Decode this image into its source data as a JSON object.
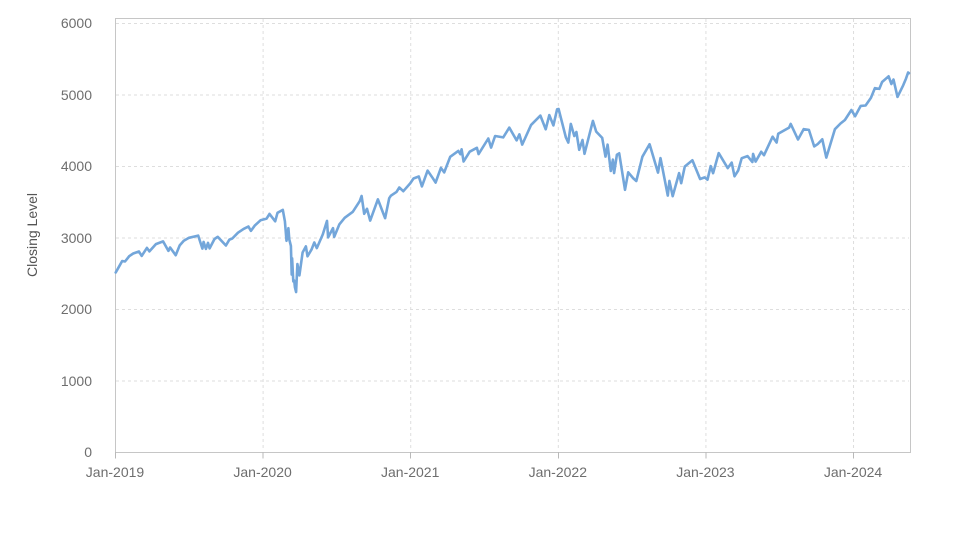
{
  "colors": {
    "background": "#ffffff",
    "line": "#73A6DA",
    "plot_border": "#c6c6c6",
    "gridline": "#dedede",
    "tick": "#b9b9b9",
    "tick_label": "#6e6e6e",
    "axis_title": "#555555"
  },
  "chart_data": {
    "type": "line",
    "title": "",
    "xlabel": "",
    "ylabel": "Closing Level",
    "grid": "dashed",
    "legend_position": "none",
    "xlim": [
      2019.0,
      2024.386
    ],
    "ylim": [
      0,
      6000
    ],
    "y_ticks": [
      {
        "label": "0",
        "value": 0
      },
      {
        "label": "1000",
        "value": 1000
      },
      {
        "label": "2000",
        "value": 2000
      },
      {
        "label": "3000",
        "value": 3000
      },
      {
        "label": "4000",
        "value": 4000
      },
      {
        "label": "5000",
        "value": 5000
      },
      {
        "label": "6000",
        "value": 6000
      }
    ],
    "x_ticks": [
      {
        "label": "Jan-2019",
        "t": 2019.0
      },
      {
        "label": "Jan-2020",
        "t": 2020.0
      },
      {
        "label": "Jan-2021",
        "t": 2021.0
      },
      {
        "label": "Jan-2022",
        "t": 2022.0
      },
      {
        "label": "Jan-2023",
        "t": 2023.0
      },
      {
        "label": "Jan-2024",
        "t": 2024.0
      }
    ],
    "series": [
      {
        "name": "Closing Level",
        "points": [
          [
            2019.005,
            2510
          ],
          [
            2019.025,
            2585
          ],
          [
            2019.049,
            2671
          ],
          [
            2019.068,
            2665
          ],
          [
            2019.096,
            2738
          ],
          [
            2019.123,
            2776
          ],
          [
            2019.162,
            2804
          ],
          [
            2019.181,
            2743
          ],
          [
            2019.216,
            2855
          ],
          [
            2019.233,
            2806
          ],
          [
            2019.277,
            2908
          ],
          [
            2019.326,
            2946
          ],
          [
            2019.362,
            2812
          ],
          [
            2019.373,
            2860
          ],
          [
            2019.411,
            2752
          ],
          [
            2019.438,
            2890
          ],
          [
            2019.466,
            2954
          ],
          [
            2019.501,
            2996
          ],
          [
            2019.564,
            3026
          ],
          [
            2019.592,
            2845
          ],
          [
            2019.6,
            2938
          ],
          [
            2019.616,
            2841
          ],
          [
            2019.63,
            2924
          ],
          [
            2019.641,
            2847
          ],
          [
            2019.674,
            2979
          ],
          [
            2019.696,
            3010
          ],
          [
            2019.751,
            2888
          ],
          [
            2019.775,
            2970
          ],
          [
            2019.795,
            2986
          ],
          [
            2019.833,
            3067
          ],
          [
            2019.871,
            3120
          ],
          [
            2019.904,
            3154
          ],
          [
            2019.921,
            3093
          ],
          [
            2019.948,
            3169
          ],
          [
            2019.986,
            3240
          ],
          [
            2020.027,
            3265
          ],
          [
            2020.047,
            3330
          ],
          [
            2020.085,
            3226
          ],
          [
            2020.101,
            3346
          ],
          [
            2020.137,
            3386
          ],
          [
            2020.151,
            3226
          ],
          [
            2020.162,
            2954
          ],
          [
            2020.175,
            3130
          ],
          [
            2020.181,
            2972
          ],
          [
            2020.192,
            2882
          ],
          [
            2020.197,
            2481
          ],
          [
            2020.2,
            2711
          ],
          [
            2020.208,
            2386
          ],
          [
            2020.214,
            2398
          ],
          [
            2020.219,
            2305
          ],
          [
            2020.227,
            2237
          ],
          [
            2020.236,
            2630
          ],
          [
            2020.249,
            2470
          ],
          [
            2020.271,
            2790
          ],
          [
            2020.293,
            2875
          ],
          [
            2020.304,
            2737
          ],
          [
            2020.331,
            2831
          ],
          [
            2020.35,
            2930
          ],
          [
            2020.367,
            2852
          ],
          [
            2020.408,
            3044
          ],
          [
            2020.436,
            3232
          ],
          [
            2020.444,
            3002
          ],
          [
            2020.477,
            3131
          ],
          [
            2020.485,
            3009
          ],
          [
            2020.52,
            3185
          ],
          [
            2020.556,
            3276
          ],
          [
            2020.611,
            3360
          ],
          [
            2020.658,
            3508
          ],
          [
            2020.671,
            3581
          ],
          [
            2020.688,
            3332
          ],
          [
            2020.707,
            3401
          ],
          [
            2020.729,
            3237
          ],
          [
            2020.781,
            3534
          ],
          [
            2020.83,
            3270
          ],
          [
            2020.858,
            3550
          ],
          [
            2020.869,
            3585
          ],
          [
            2020.907,
            3638
          ],
          [
            2020.926,
            3699
          ],
          [
            2020.953,
            3647
          ],
          [
            2021.0,
            3756
          ],
          [
            2021.022,
            3825
          ],
          [
            2021.058,
            3853
          ],
          [
            2021.079,
            3714
          ],
          [
            2021.118,
            3935
          ],
          [
            2021.153,
            3829
          ],
          [
            2021.172,
            3768
          ],
          [
            2021.208,
            3974
          ],
          [
            2021.23,
            3910
          ],
          [
            2021.271,
            4129
          ],
          [
            2021.326,
            4211
          ],
          [
            2021.34,
            4165
          ],
          [
            2021.348,
            4233
          ],
          [
            2021.362,
            4063
          ],
          [
            2021.403,
            4200
          ],
          [
            2021.452,
            4255
          ],
          [
            2021.463,
            4166
          ],
          [
            2021.529,
            4385
          ],
          [
            2021.548,
            4258
          ],
          [
            2021.575,
            4419
          ],
          [
            2021.63,
            4400
          ],
          [
            2021.671,
            4537
          ],
          [
            2021.721,
            4358
          ],
          [
            2021.74,
            4443
          ],
          [
            2021.759,
            4300
          ],
          [
            2021.819,
            4575
          ],
          [
            2021.882,
            4705
          ],
          [
            2021.918,
            4513
          ],
          [
            2021.942,
            4712
          ],
          [
            2021.97,
            4568
          ],
          [
            2021.995,
            4793
          ],
          [
            2022.005,
            4797
          ],
          [
            2022.055,
            4398
          ],
          [
            2022.071,
            4327
          ],
          [
            2022.088,
            4589
          ],
          [
            2022.112,
            4419
          ],
          [
            2022.126,
            4475
          ],
          [
            2022.145,
            4226
          ],
          [
            2022.167,
            4363
          ],
          [
            2022.181,
            4171
          ],
          [
            2022.238,
            4631
          ],
          [
            2022.26,
            4481
          ],
          [
            2022.301,
            4393
          ],
          [
            2022.323,
            4132
          ],
          [
            2022.337,
            4300
          ],
          [
            2022.359,
            3930
          ],
          [
            2022.373,
            4089
          ],
          [
            2022.381,
            3901
          ],
          [
            2022.4,
            4158
          ],
          [
            2022.416,
            4177
          ],
          [
            2022.455,
            3667
          ],
          [
            2022.477,
            3912
          ],
          [
            2022.51,
            3831
          ],
          [
            2022.532,
            3790
          ],
          [
            2022.573,
            4130
          ],
          [
            2022.622,
            4305
          ],
          [
            2022.679,
            3908
          ],
          [
            2022.696,
            4110
          ],
          [
            2022.745,
            3586
          ],
          [
            2022.756,
            3791
          ],
          [
            2022.778,
            3577
          ],
          [
            2022.822,
            3901
          ],
          [
            2022.836,
            3760
          ],
          [
            2022.86,
            3993
          ],
          [
            2022.912,
            4080
          ],
          [
            2022.964,
            3818
          ],
          [
            2022.995,
            3840
          ],
          [
            2023.014,
            3808
          ],
          [
            2023.036,
            3999
          ],
          [
            2023.052,
            3899
          ],
          [
            2023.09,
            4180
          ],
          [
            2023.151,
            3970
          ],
          [
            2023.178,
            4048
          ],
          [
            2023.197,
            3856
          ],
          [
            2023.222,
            3937
          ],
          [
            2023.246,
            4109
          ],
          [
            2023.285,
            4138
          ],
          [
            2023.318,
            4056
          ],
          [
            2023.323,
            4169
          ],
          [
            2023.34,
            4061
          ],
          [
            2023.378,
            4198
          ],
          [
            2023.397,
            4151
          ],
          [
            2023.455,
            4410
          ],
          [
            2023.482,
            4329
          ],
          [
            2023.493,
            4450
          ],
          [
            2023.567,
            4537
          ],
          [
            2023.578,
            4589
          ],
          [
            2023.627,
            4370
          ],
          [
            2023.666,
            4516
          ],
          [
            2023.701,
            4505
          ],
          [
            2023.737,
            4274
          ],
          [
            2023.762,
            4309
          ],
          [
            2023.792,
            4373
          ],
          [
            2023.819,
            4117
          ],
          [
            2023.877,
            4514
          ],
          [
            2023.915,
            4595
          ],
          [
            2023.945,
            4644
          ],
          [
            2023.989,
            4783
          ],
          [
            2024.014,
            4697
          ],
          [
            2024.052,
            4840
          ],
          [
            2024.085,
            4846
          ],
          [
            2024.121,
            4953
          ],
          [
            2024.148,
            5089
          ],
          [
            2024.178,
            5078
          ],
          [
            2024.197,
            5175
          ],
          [
            2024.241,
            5254
          ],
          [
            2024.26,
            5147
          ],
          [
            2024.274,
            5210
          ],
          [
            2024.301,
            4967
          ],
          [
            2024.34,
            5128
          ],
          [
            2024.359,
            5223
          ],
          [
            2024.373,
            5308
          ],
          [
            2024.379,
            5298
          ]
        ]
      }
    ]
  }
}
